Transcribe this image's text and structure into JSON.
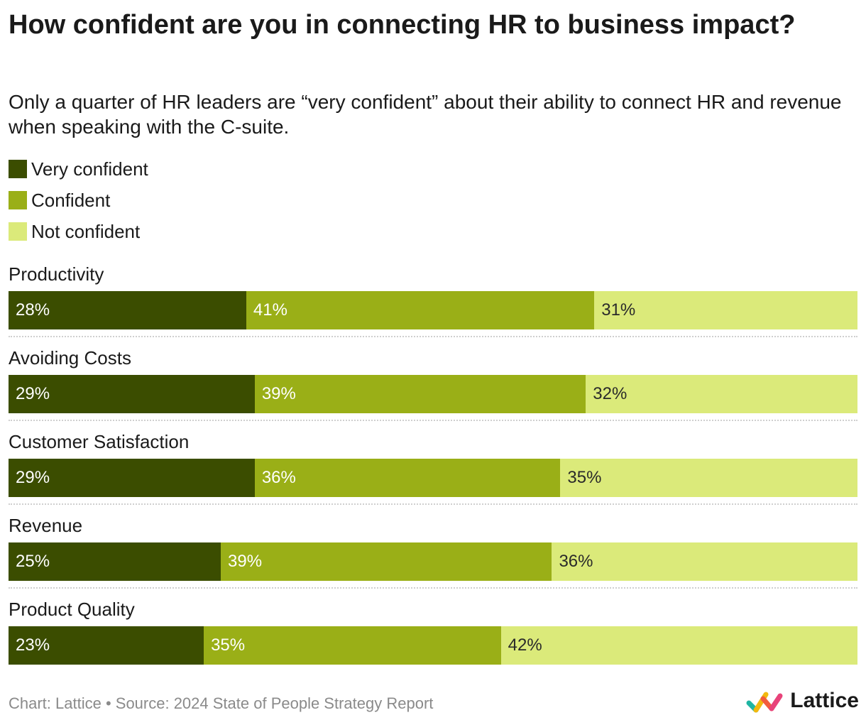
{
  "title": "How confident are you in connecting HR to business impact?",
  "subtitle": "Only a quarter of HR leaders are “very confident” about their ability to connect HR and revenue when speaking with the C-suite.",
  "colors": {
    "very_confident": "#3b4d00",
    "confident": "#9aaf17",
    "not_confident": "#dbea7a",
    "text_light": "#ffffff",
    "text_dark": "#2a2a2a"
  },
  "chart_data": {
    "type": "bar",
    "orientation": "horizontal",
    "stacked": true,
    "percent_stacked": true,
    "title": "How confident are you in connecting HR to business impact?",
    "subtitle": "Only a quarter of HR leaders are “very confident” about their ability to connect HR and revenue when speaking with the C-suite.",
    "categories": [
      "Productivity",
      "Avoiding Costs",
      "Customer Satisfaction",
      "Revenue",
      "Product Quality"
    ],
    "series": [
      {
        "name": "Very confident",
        "values": [
          28,
          29,
          29,
          25,
          23
        ]
      },
      {
        "name": "Confident",
        "values": [
          41,
          39,
          36,
          39,
          35
        ]
      },
      {
        "name": "Not confident",
        "values": [
          31,
          32,
          35,
          36,
          42
        ]
      }
    ],
    "value_suffix": "%",
    "xlim": [
      0,
      100
    ],
    "legend_position": "top-left",
    "grid": false
  },
  "footer": {
    "source": "Chart: Lattice • Source: 2024 State of People Strategy Report",
    "logo_text": "Lattice",
    "logo_icon": "lattice-logo-icon"
  }
}
